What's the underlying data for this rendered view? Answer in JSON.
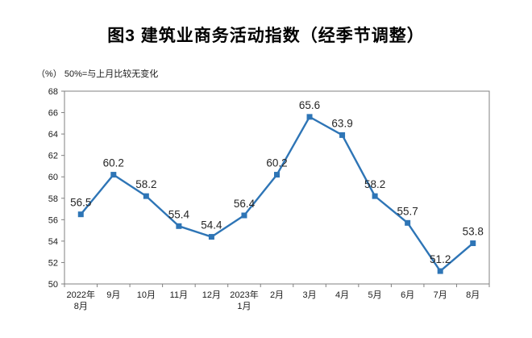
{
  "title": "图3  建筑业商务活动指数（经季节调整）",
  "axis_note": "（%）  50%=与上月比较无变化",
  "colors": {
    "line": "#2E75B6",
    "marker": "#2E75B6",
    "frame": "#808080",
    "tick_text": "#1a1a1a",
    "data_label": "#262626",
    "background": "#ffffff"
  },
  "chart_data": {
    "type": "line",
    "title": "图3 建筑业商务活动指数（经季节调整）",
    "ylabel": "（%） 50%=与上月比较无变化",
    "xlabel": "",
    "categories": [
      "2022年\n8月",
      "9月",
      "10月",
      "11月",
      "12月",
      "2023年\n1月",
      "2月",
      "3月",
      "4月",
      "5月",
      "6月",
      "7月",
      "8月"
    ],
    "values": [
      56.5,
      60.2,
      58.2,
      55.4,
      54.4,
      56.4,
      60.2,
      65.6,
      63.9,
      58.2,
      55.7,
      51.2,
      53.8
    ],
    "ylim": [
      50,
      68
    ],
    "ytick_step": 2,
    "grid": false,
    "legend": "none",
    "marker": "square",
    "data_labels_shown": true
  }
}
